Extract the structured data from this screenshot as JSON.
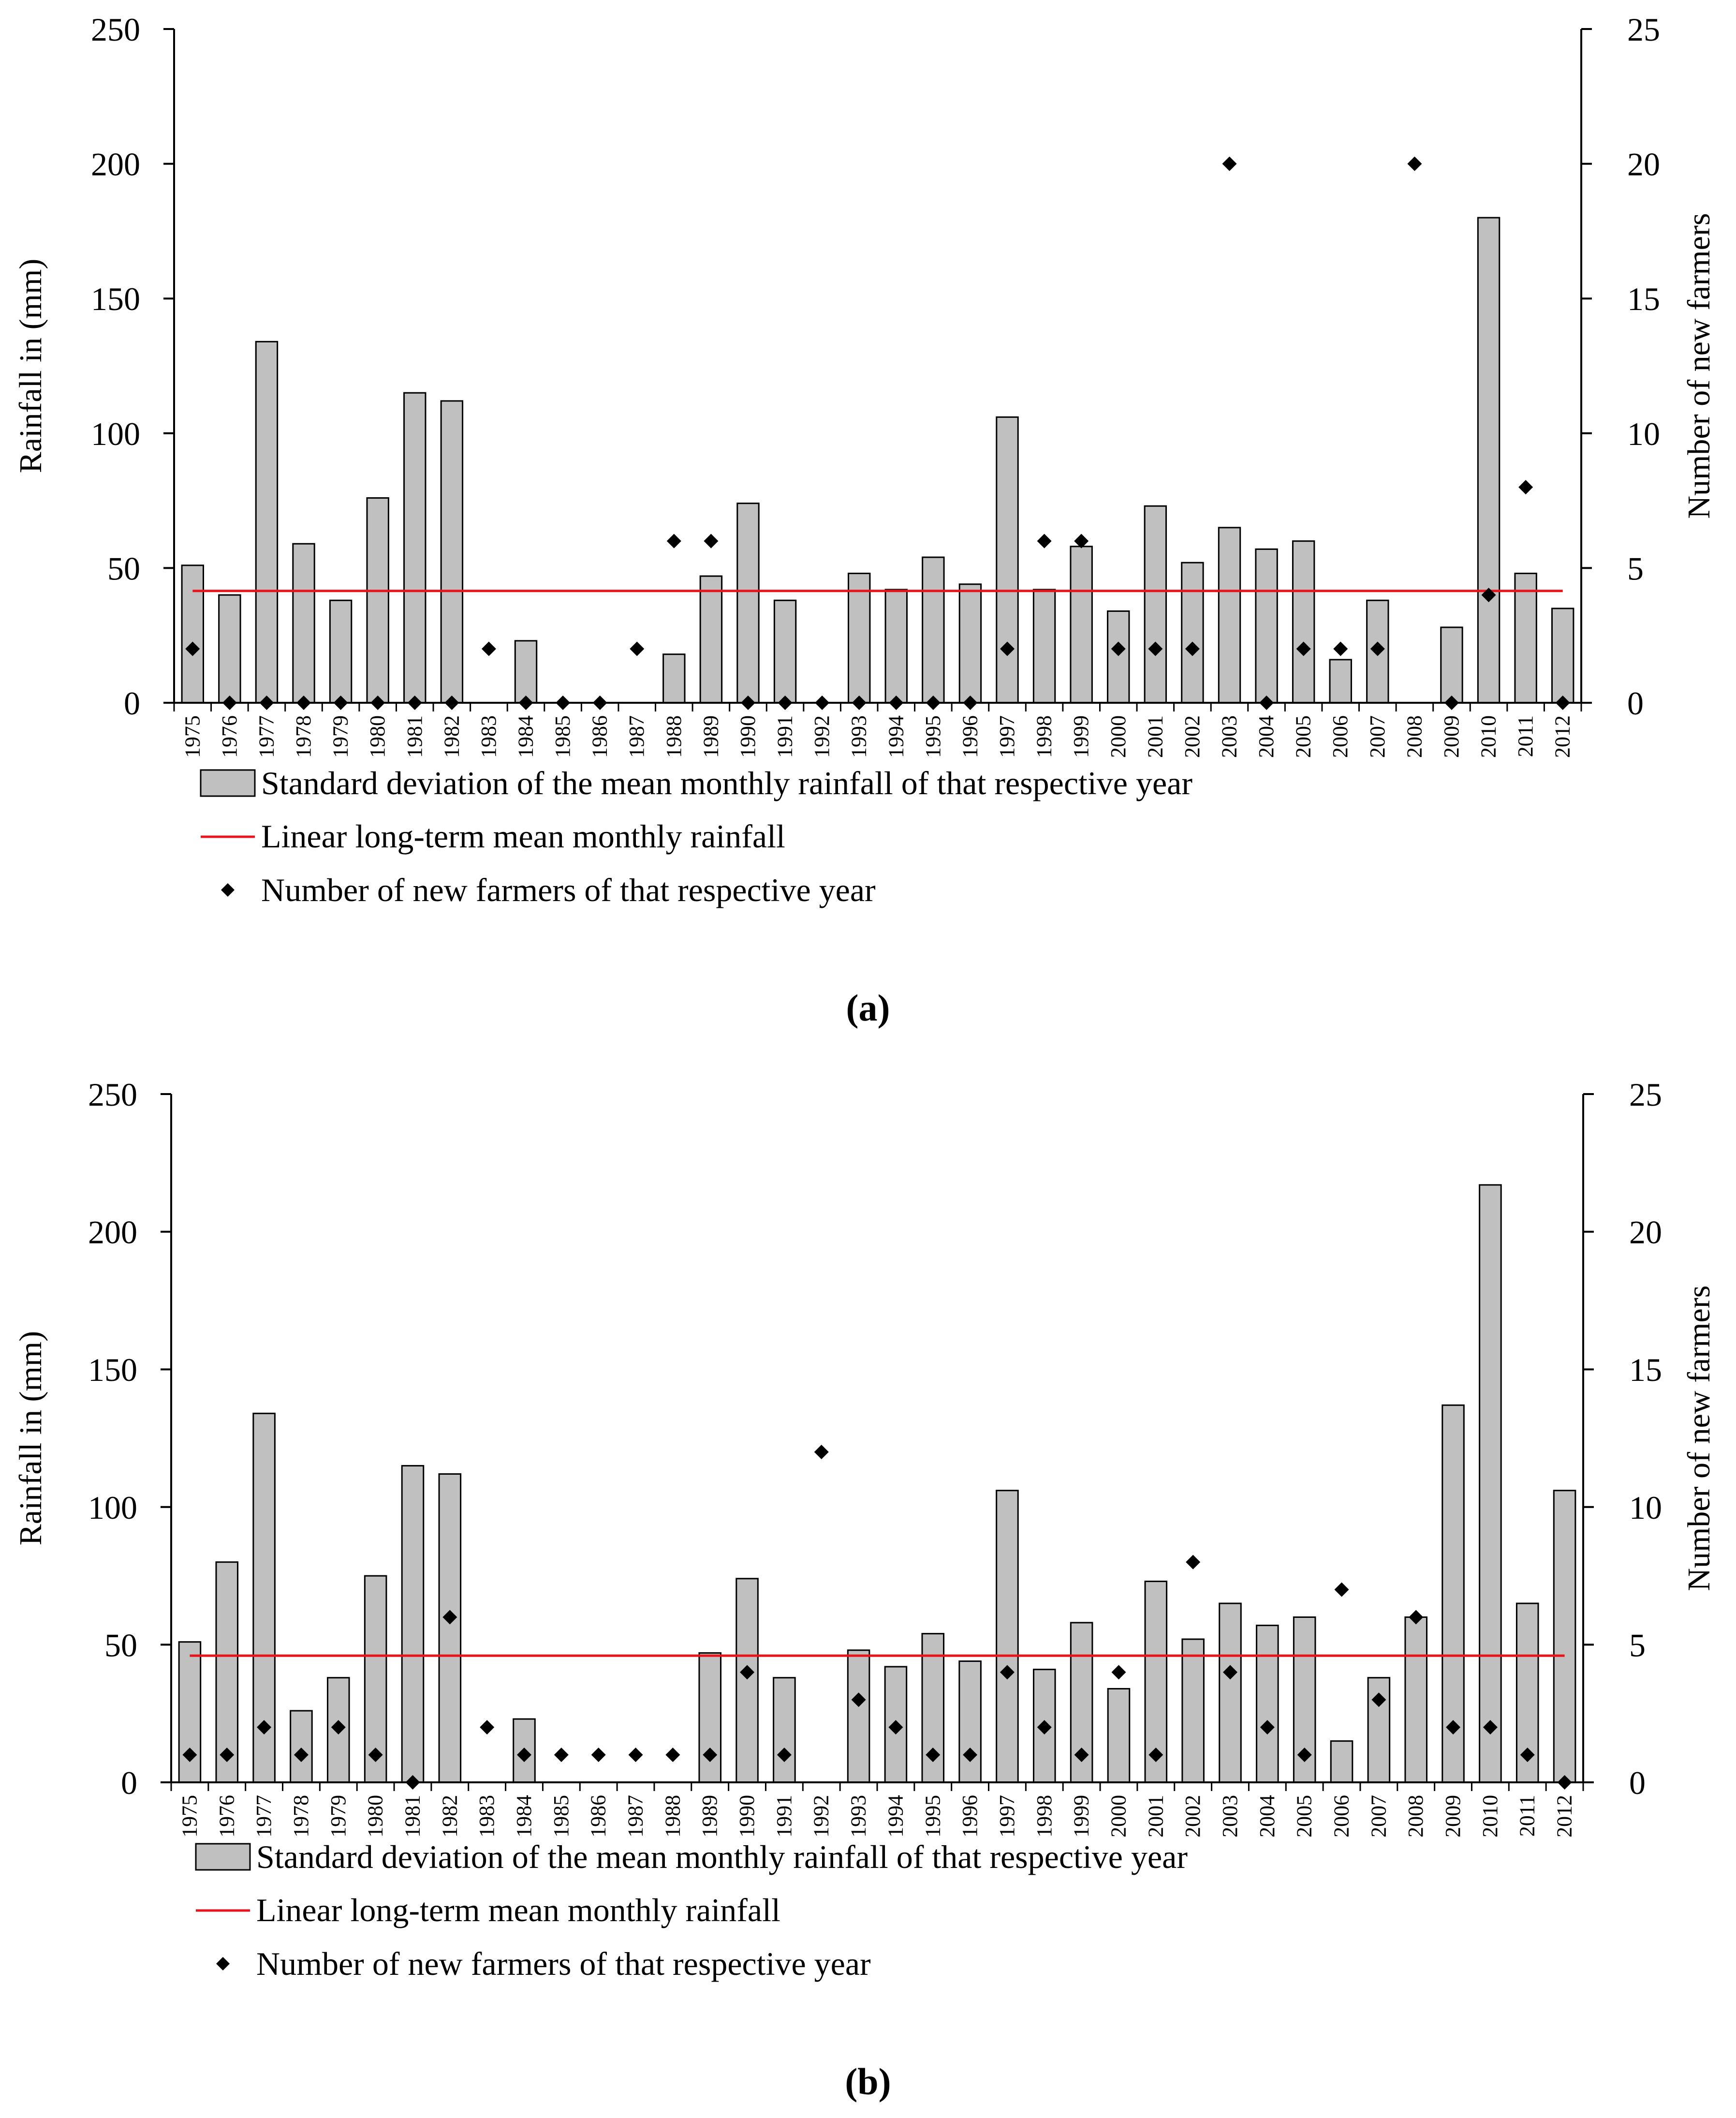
{
  "colors": {
    "bar_fill": "#c0c0c0",
    "bar_stroke": "#000000",
    "mean_line": "#e8141c",
    "marker": "#000000",
    "axis": "#000000"
  },
  "chart_data": [
    {
      "type": "bar",
      "panel_label": "(a)",
      "ylabel": "Rainfall in (mm)",
      "y2label": "Number of new farmers",
      "ylim": [
        0,
        250
      ],
      "y2lim": [
        0,
        25
      ],
      "yticks": [
        0,
        50,
        100,
        150,
        200,
        250
      ],
      "y2ticks": [
        0,
        5,
        10,
        15,
        20,
        25
      ],
      "categories": [
        "1975",
        "1976",
        "1977",
        "1978",
        "1979",
        "1980",
        "1981",
        "1982",
        "1983",
        "1984",
        "1985",
        "1986",
        "1987",
        "1988",
        "1989",
        "1990",
        "1991",
        "1992",
        "1993",
        "1994",
        "1995",
        "1996",
        "1997",
        "1998",
        "1999",
        "2000",
        "2001",
        "2002",
        "2003",
        "2004",
        "2005",
        "2006",
        "2007",
        "2008",
        "2009",
        "2010",
        "2011",
        "2012"
      ],
      "series": [
        {
          "name": "Standard deviation of the mean monthly rainfall of that respective year",
          "kind": "bar",
          "axis": "left",
          "values": [
            51,
            40,
            134,
            59,
            38,
            76,
            115,
            112,
            0,
            23,
            0,
            0,
            0,
            18,
            47,
            74,
            38,
            0,
            48,
            42,
            54,
            44,
            106,
            42,
            58,
            34,
            73,
            52,
            65,
            57,
            60,
            16,
            38,
            0,
            28,
            180,
            48,
            35
          ]
        },
        {
          "name": "Linear long-term mean monthly rainfall",
          "kind": "line",
          "axis": "left",
          "value": 41.5
        },
        {
          "name": "Number of new farmers of that respective year",
          "kind": "scatter",
          "axis": "right",
          "values": [
            2,
            0,
            0,
            0,
            0,
            0,
            0,
            0,
            2,
            0,
            0,
            0,
            2,
            6,
            6,
            0,
            0,
            0,
            0,
            0,
            0,
            0,
            2,
            6,
            6,
            2,
            2,
            2,
            20,
            0,
            2,
            2,
            2,
            20,
            0,
            4,
            8,
            0
          ]
        }
      ]
    },
    {
      "type": "bar",
      "panel_label": "(b)",
      "ylabel": "Rainfall in (mm)",
      "y2label": "Number of new farmers",
      "ylim": [
        0,
        250
      ],
      "y2lim": [
        0,
        25
      ],
      "yticks": [
        0,
        50,
        100,
        150,
        200,
        250
      ],
      "y2ticks": [
        0,
        5,
        10,
        15,
        20,
        25
      ],
      "categories": [
        "1975",
        "1976",
        "1977",
        "1978",
        "1979",
        "1980",
        "1981",
        "1982",
        "1983",
        "1984",
        "1985",
        "1986",
        "1987",
        "1988",
        "1989",
        "1990",
        "1991",
        "1992",
        "1993",
        "1994",
        "1995",
        "1996",
        "1997",
        "1998",
        "1999",
        "2000",
        "2001",
        "2002",
        "2003",
        "2004",
        "2005",
        "2006",
        "2007",
        "2008",
        "2009",
        "2010",
        "2011",
        "2012"
      ],
      "series": [
        {
          "name": "Standard deviation of the mean monthly rainfall of that respective year",
          "kind": "bar",
          "axis": "left",
          "values": [
            51,
            80,
            134,
            26,
            38,
            75,
            115,
            112,
            0,
            23,
            0,
            0,
            0,
            0,
            47,
            74,
            38,
            0,
            48,
            42,
            54,
            44,
            106,
            41,
            58,
            34,
            73,
            52,
            65,
            57,
            60,
            15,
            38,
            60,
            137,
            217,
            65,
            106
          ]
        },
        {
          "name": "Linear long-term mean monthly rainfall",
          "kind": "line",
          "axis": "left",
          "value": 46
        },
        {
          "name": "Number of new farmers of that respective year",
          "kind": "scatter",
          "axis": "right",
          "values": [
            1,
            1,
            2,
            1,
            2,
            1,
            0,
            6,
            2,
            1,
            1,
            1,
            1,
            1,
            1,
            4,
            1,
            12,
            3,
            2,
            1,
            1,
            4,
            2,
            1,
            4,
            1,
            8,
            4,
            2,
            1,
            7,
            3,
            6,
            2,
            2,
            1,
            0
          ]
        }
      ]
    }
  ]
}
